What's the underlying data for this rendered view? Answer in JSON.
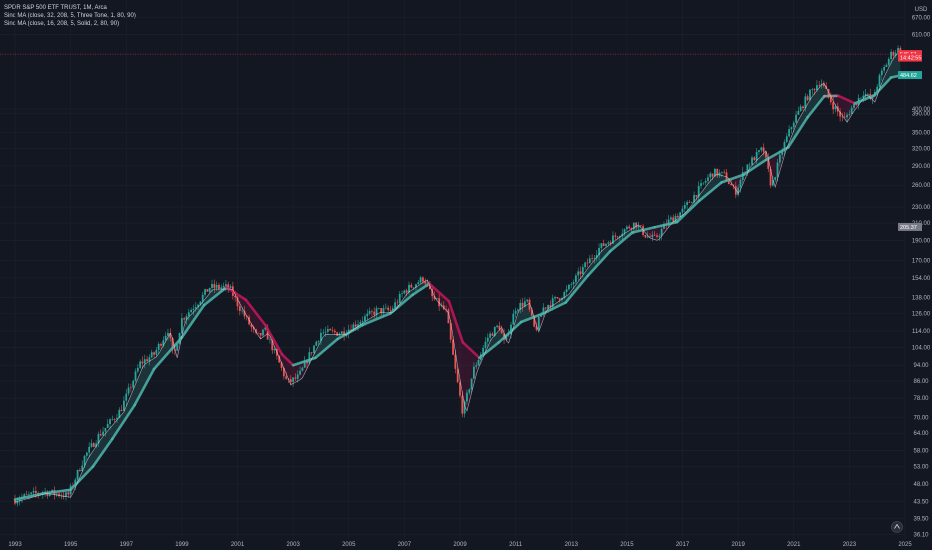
{
  "legend": {
    "symbol": "SPDR S&P 500 ETF TRUST, 1M, Arca",
    "indicator1": "Sinc MA (close, 32, 208, 5, Three Tone, 1, 80, 90)",
    "indicator2": "Sinc MA (close, 16, 208, 5, Solid, 2, 80, 90)"
  },
  "currency": "USD",
  "colors": {
    "background": "#131722",
    "grid": "#1e222d",
    "up": "#26a69a",
    "down": "#ef5350",
    "ma_teal": "#4db6ac",
    "ma_red": "#c2185b",
    "ma_gray": "#9e9e9e",
    "last_price": "#f23645",
    "ma_tag": "#26a69a",
    "mid_tag": "#787b86"
  },
  "chart_data": {
    "type": "line",
    "log_scale": true,
    "ylim": [
      35,
      700
    ],
    "xlim": [
      1993.0,
      2025.0
    ],
    "y_ticks": [
      "670.00",
      "610.00",
      "400.00",
      "390.00",
      "350.00",
      "320.00",
      "290.00",
      "260.00",
      "230.00",
      "210.00",
      "190.00",
      "170.00",
      "154.00",
      "138.00",
      "126.00",
      "114.00",
      "104.00",
      "94.00",
      "86.00",
      "78.00",
      "70.00",
      "64.00",
      "58.00",
      "53.00",
      "48.00",
      "43.50",
      "39.50",
      "36.10"
    ],
    "x_ticks": [
      "1993",
      "1995",
      "1997",
      "1999",
      "2001",
      "2003",
      "2005",
      "2007",
      "2009",
      "2011",
      "2013",
      "2015",
      "2017",
      "2019",
      "2021",
      "2023",
      "2025"
    ],
    "price_tags": [
      {
        "label": "545.51",
        "value": 545.51,
        "role": "last-price"
      },
      {
        "label": "14:42:55",
        "value": 535,
        "role": "countdown"
      },
      {
        "label": "484.62",
        "value": 484.62,
        "role": "ma-value"
      },
      {
        "label": "205.37",
        "value": 205.37,
        "role": "mid-value"
      }
    ],
    "price_anchors": [
      [
        1993.0,
        44
      ],
      [
        1994.0,
        46
      ],
      [
        1994.9,
        45
      ],
      [
        1995.5,
        56
      ],
      [
        1996.0,
        63
      ],
      [
        1996.8,
        73
      ],
      [
        1997.5,
        95
      ],
      [
        1998.0,
        100
      ],
      [
        1998.5,
        115
      ],
      [
        1998.7,
        98
      ],
      [
        1999.0,
        122
      ],
      [
        1999.6,
        135
      ],
      [
        2000.0,
        146
      ],
      [
        2000.7,
        146
      ],
      [
        2001.0,
        133
      ],
      [
        2001.7,
        110
      ],
      [
        2002.0,
        114
      ],
      [
        2002.5,
        95
      ],
      [
        2002.8,
        85
      ],
      [
        2003.2,
        88
      ],
      [
        2003.6,
        100
      ],
      [
        2004.0,
        113
      ],
      [
        2004.8,
        113
      ],
      [
        2005.5,
        122
      ],
      [
        2006.0,
        128
      ],
      [
        2006.5,
        128
      ],
      [
        2007.0,
        143
      ],
      [
        2007.7,
        154
      ],
      [
        2008.0,
        138
      ],
      [
        2008.5,
        127
      ],
      [
        2008.8,
        94
      ],
      [
        2009.1,
        72
      ],
      [
        2009.5,
        92
      ],
      [
        2010.0,
        110
      ],
      [
        2010.4,
        118
      ],
      [
        2010.6,
        106
      ],
      [
        2011.0,
        130
      ],
      [
        2011.4,
        135
      ],
      [
        2011.7,
        114
      ],
      [
        2012.0,
        130
      ],
      [
        2012.8,
        142
      ],
      [
        2013.5,
        165
      ],
      [
        2014.0,
        182
      ],
      [
        2014.8,
        200
      ],
      [
        2015.3,
        210
      ],
      [
        2015.7,
        195
      ],
      [
        2016.0,
        192
      ],
      [
        2016.5,
        212
      ],
      [
        2017.0,
        225
      ],
      [
        2017.8,
        265
      ],
      [
        2018.1,
        280
      ],
      [
        2018.5,
        275
      ],
      [
        2018.9,
        250
      ],
      [
        2019.3,
        290
      ],
      [
        2019.9,
        320
      ],
      [
        2020.2,
        258
      ],
      [
        2020.6,
        320
      ],
      [
        2021.0,
        375
      ],
      [
        2021.5,
        430
      ],
      [
        2021.95,
        470
      ],
      [
        2022.4,
        410
      ],
      [
        2022.8,
        375
      ],
      [
        2023.0,
        395
      ],
      [
        2023.5,
        440
      ],
      [
        2023.8,
        420
      ],
      [
        2024.1,
        480
      ],
      [
        2024.5,
        545
      ],
      [
        2024.75,
        560
      ],
      [
        2024.9,
        545.5
      ]
    ],
    "series": [
      {
        "values": [
          [
            1993.0,
            44
          ],
          [
            1994.0,
            45.5
          ],
          [
            1995.0,
            46.5
          ],
          [
            1995.8,
            53
          ],
          [
            1996.5,
            62
          ],
          [
            1997.3,
            75
          ],
          [
            1998.0,
            92
          ],
          [
            1999.0,
            110
          ],
          [
            1999.8,
            132
          ],
          [
            2000.6,
            146
          ],
          [
            2001.3,
            136
          ],
          [
            2002.0,
            118
          ],
          [
            2002.6,
            100
          ],
          [
            2003.0,
            94
          ],
          [
            2003.8,
            98
          ],
          [
            2004.6,
            109
          ],
          [
            2005.5,
            118
          ],
          [
            2006.5,
            126
          ],
          [
            2007.3,
            140
          ],
          [
            2007.9,
            149
          ],
          [
            2008.6,
            135
          ],
          [
            2009.1,
            107
          ],
          [
            2009.7,
            98
          ],
          [
            2010.4,
            107
          ],
          [
            2011.2,
            120
          ],
          [
            2012.0,
            126
          ],
          [
            2012.8,
            134
          ],
          [
            2013.6,
            156
          ],
          [
            2014.4,
            179
          ],
          [
            2015.2,
            199
          ],
          [
            2016.0,
            205
          ],
          [
            2016.8,
            211
          ],
          [
            2017.6,
            238
          ],
          [
            2018.4,
            264
          ],
          [
            2019.2,
            276
          ],
          [
            2020.0,
            300
          ],
          [
            2020.8,
            322
          ],
          [
            2021.5,
            382
          ],
          [
            2022.1,
            430
          ],
          [
            2022.6,
            431
          ],
          [
            2023.2,
            413
          ],
          [
            2023.9,
            432
          ],
          [
            2024.5,
            478
          ],
          [
            2024.9,
            484.6
          ]
        ]
      }
    ]
  }
}
